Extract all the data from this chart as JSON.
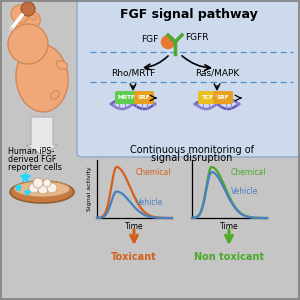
{
  "bg_color": "#c5c5c5",
  "panel_bg": "#cddaed",
  "panel_edge": "#8aaac8",
  "panel_title": "FGF signal pathway",
  "fgf_label": "FGF",
  "fgfr_label": "FGFR",
  "rho_label": "Rho/MRTF",
  "ras_label": "Ras/MAPK",
  "mrtf_label": "MRTF",
  "srf_label": "SRF",
  "tcf_label": "TCF",
  "monitor_text1": "Continuous monitoring of",
  "monitor_text2": "signal disruption",
  "human_ips_line1": "Human iPS-",
  "human_ips_line2": "derived FGF",
  "human_ips_line3": "reporter cells",
  "chemical_orange": "#d4601a",
  "vehicle_blue": "#4a7fc0",
  "chemical_green": "#4aaa28",
  "toxicant_label": "Toxicant",
  "non_toxicant_label": "Non toxicant",
  "time_label": "Time",
  "signal_label": "Signal activity",
  "chemical_label": "Chemical",
  "vehicle_label": "Vehicle",
  "fetus_color": "#f0a878",
  "fetus_edge": "#d08858",
  "arrow_white": "#e8e8e8",
  "dna_color1": "#6858b8",
  "dna_color2": "#8878d0",
  "mrtf_color": "#60cc50",
  "srf_color": "#e8a020",
  "tcf_color": "#e8c020",
  "receptor_color": "#50a830"
}
